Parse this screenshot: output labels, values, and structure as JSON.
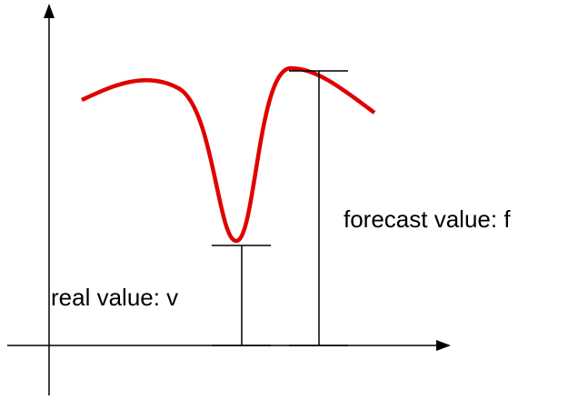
{
  "labels": {
    "real": "real value: v",
    "forecast": "forecast value: f"
  }
}
